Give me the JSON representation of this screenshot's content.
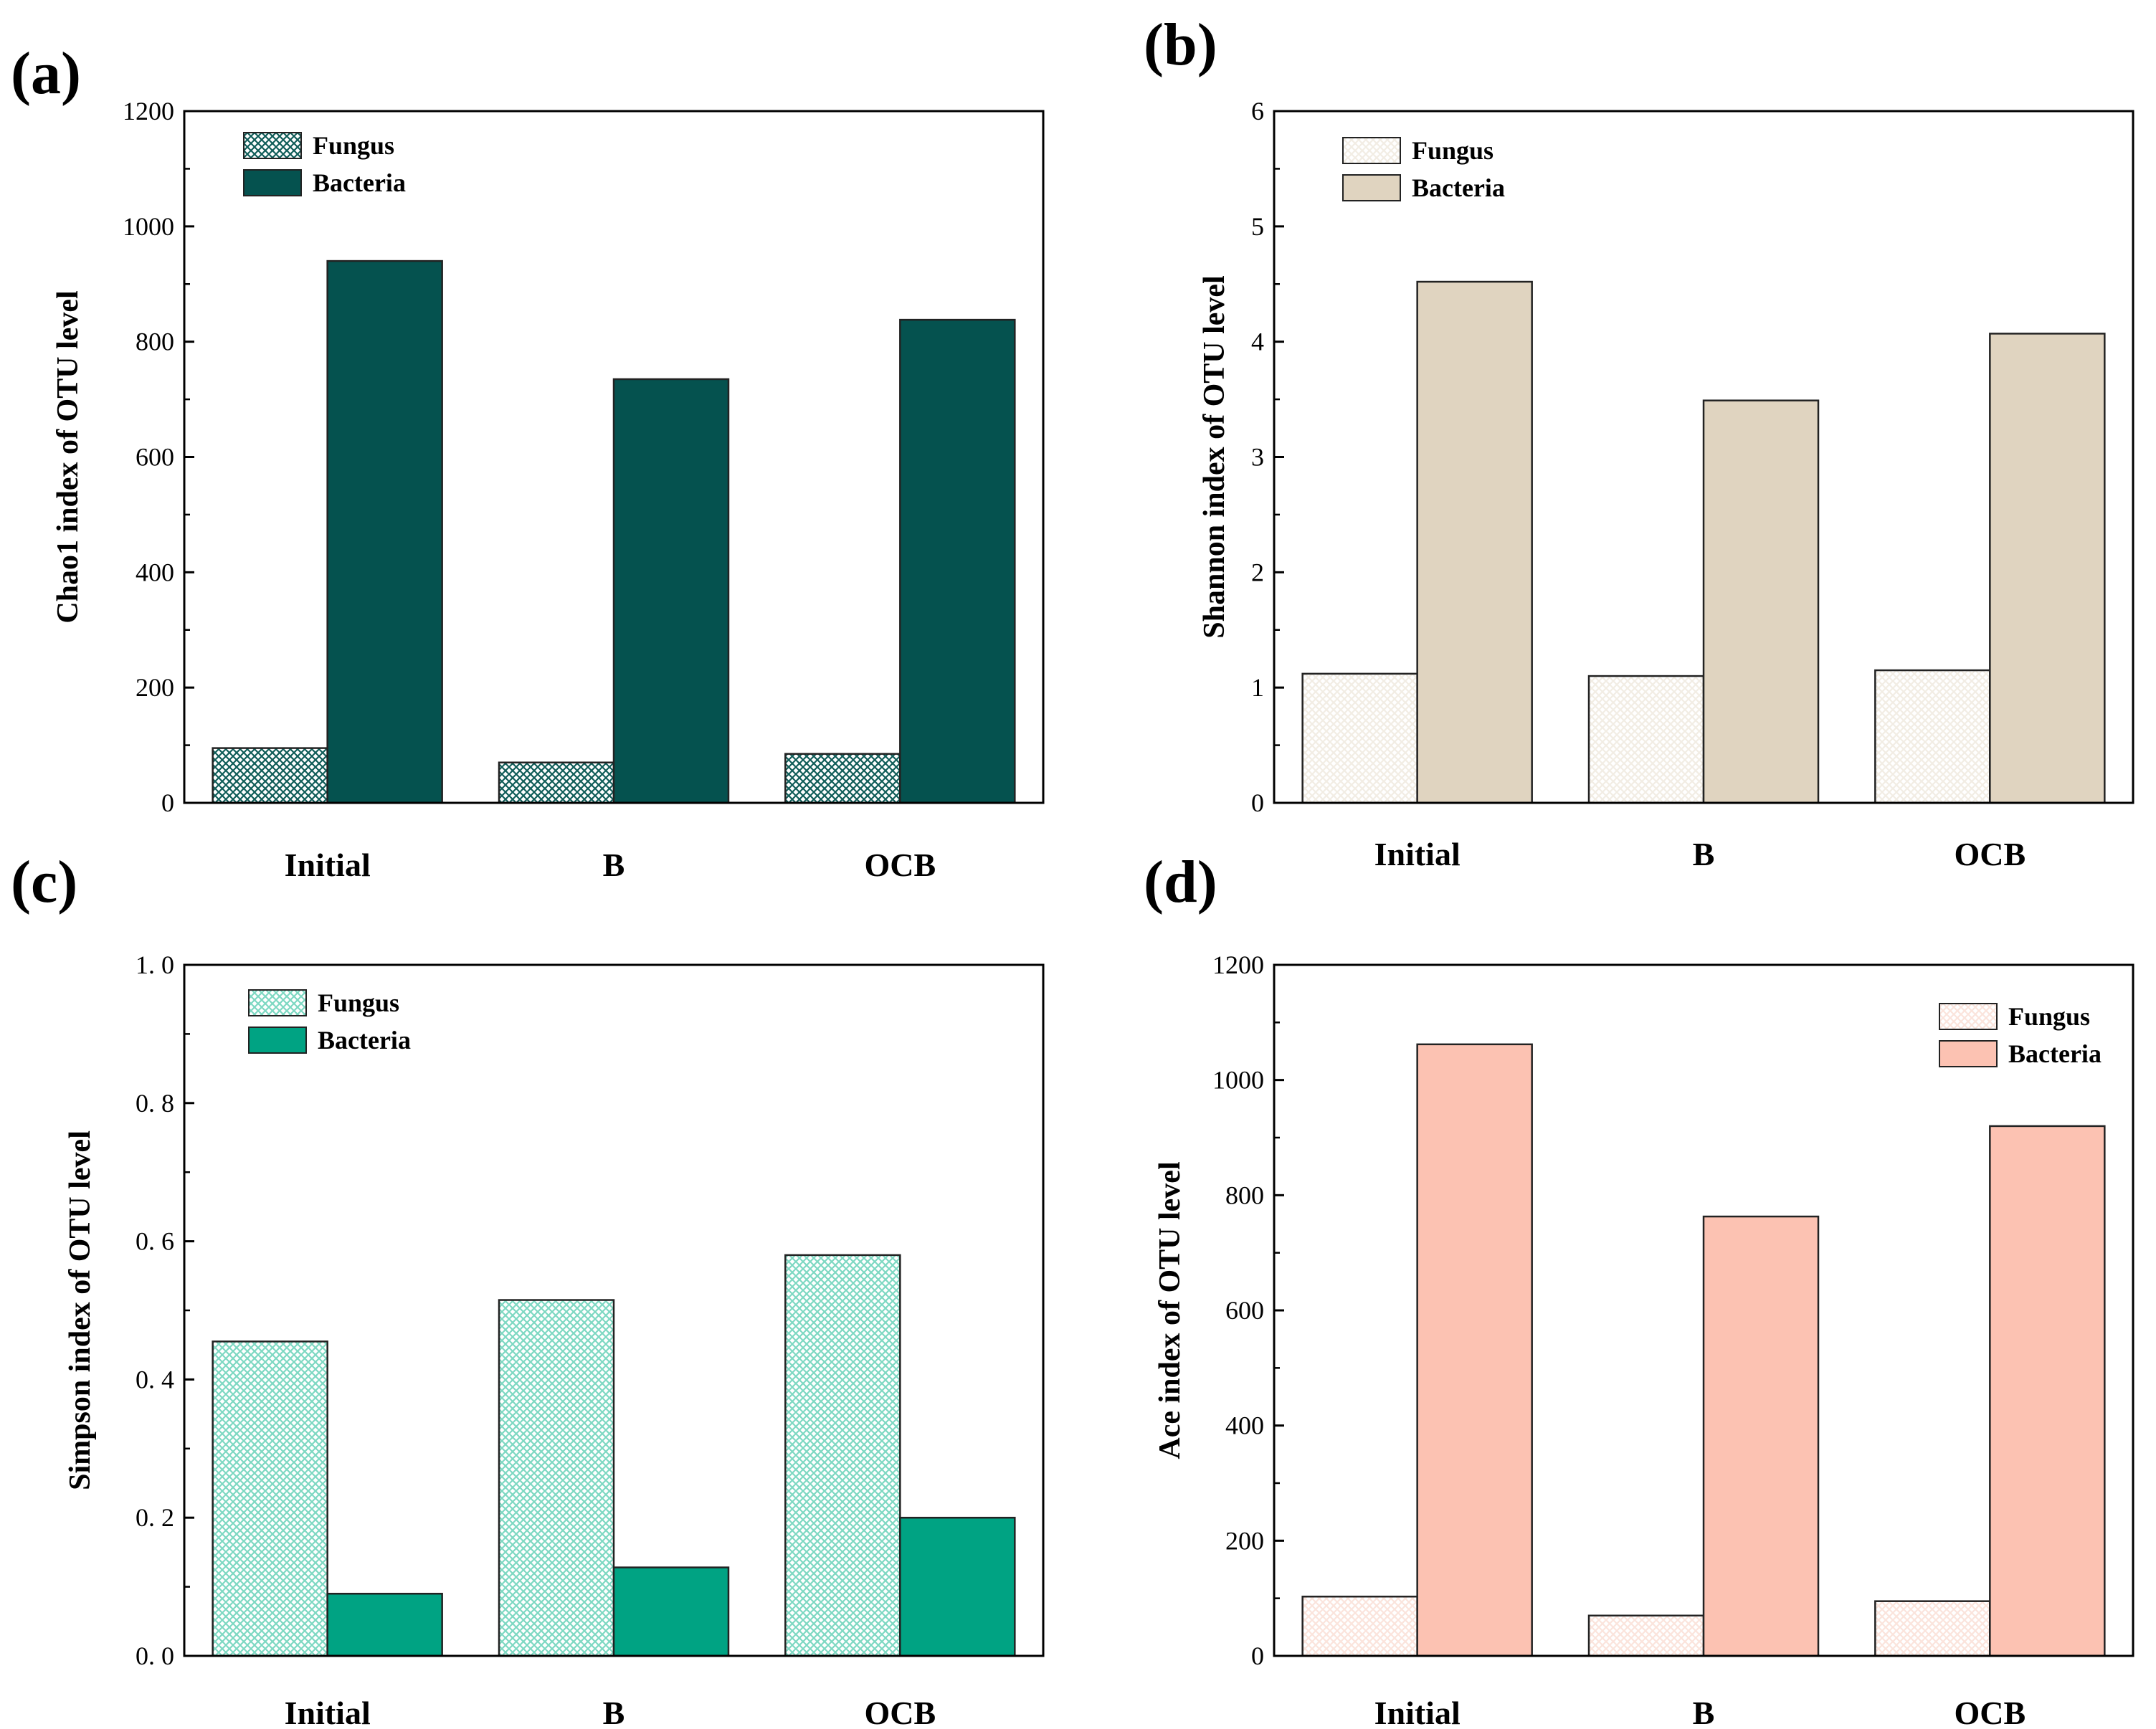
{
  "chart_data": [
    {
      "panel": "(a)",
      "type": "bar",
      "categories": [
        "Initial",
        "B",
        "OCB"
      ],
      "series": [
        {
          "name": "Fungus",
          "values": [
            95,
            70,
            85
          ],
          "color": "#0f5c58",
          "pattern": "crosshatch"
        },
        {
          "name": "Bacteria",
          "values": [
            940,
            735,
            838
          ],
          "color": "#05524f",
          "pattern": "solid"
        }
      ],
      "ylabel": "Chao1 index of OTU level",
      "ylim": [
        0,
        1200
      ],
      "yticks": [
        "0",
        "200",
        "400",
        "600",
        "800",
        "1000",
        "1200"
      ],
      "legend": "top-left",
      "grid": false
    },
    {
      "panel": "(b)",
      "type": "bar",
      "categories": [
        "Initial",
        "B",
        "OCB"
      ],
      "series": [
        {
          "name": "Fungus",
          "values": [
            1.12,
            1.1,
            1.15
          ],
          "color": "#f2ede4",
          "pattern": "crosshatch"
        },
        {
          "name": "Bacteria",
          "values": [
            4.52,
            3.49,
            4.07
          ],
          "color": "#e0d4c0",
          "pattern": "solid"
        }
      ],
      "ylabel": "Shannon index of OTU level",
      "ylim": [
        0,
        6
      ],
      "yticks": [
        "0",
        "1",
        "2",
        "3",
        "4",
        "5",
        "6"
      ],
      "legend": "top-left",
      "grid": false
    },
    {
      "panel": "(c)",
      "type": "bar",
      "categories": [
        "Initial",
        "B",
        "OCB"
      ],
      "series": [
        {
          "name": "Fungus",
          "values": [
            0.455,
            0.515,
            0.58
          ],
          "color": "#7dd8c2",
          "pattern": "crosshatch"
        },
        {
          "name": "Bacteria",
          "values": [
            0.09,
            0.128,
            0.2
          ],
          "color": "#00a383",
          "pattern": "solid"
        }
      ],
      "ylabel": "Simpson index of OTU level",
      "ylim": [
        0,
        1.0
      ],
      "yticks": [
        "0. 0",
        "0. 2",
        "0. 4",
        "0. 6",
        "0. 8",
        "1. 0"
      ],
      "legend": "top-left",
      "grid": false
    },
    {
      "panel": "(d)",
      "type": "bar",
      "categories": [
        "Initial",
        "B",
        "OCB"
      ],
      "series": [
        {
          "name": "Fungus",
          "values": [
            103,
            70,
            95
          ],
          "color": "#fbe4dc",
          "pattern": "crosshatch"
        },
        {
          "name": "Bacteria",
          "values": [
            1062,
            763,
            920
          ],
          "color": "#fcc2b2",
          "pattern": "solid"
        }
      ],
      "ylabel": "Ace index of OTU level",
      "ylim": [
        0,
        1200
      ],
      "yticks": [
        "0",
        "200",
        "400",
        "600",
        "800",
        "1000",
        "1200"
      ],
      "legend": "top-right",
      "grid": false
    }
  ]
}
